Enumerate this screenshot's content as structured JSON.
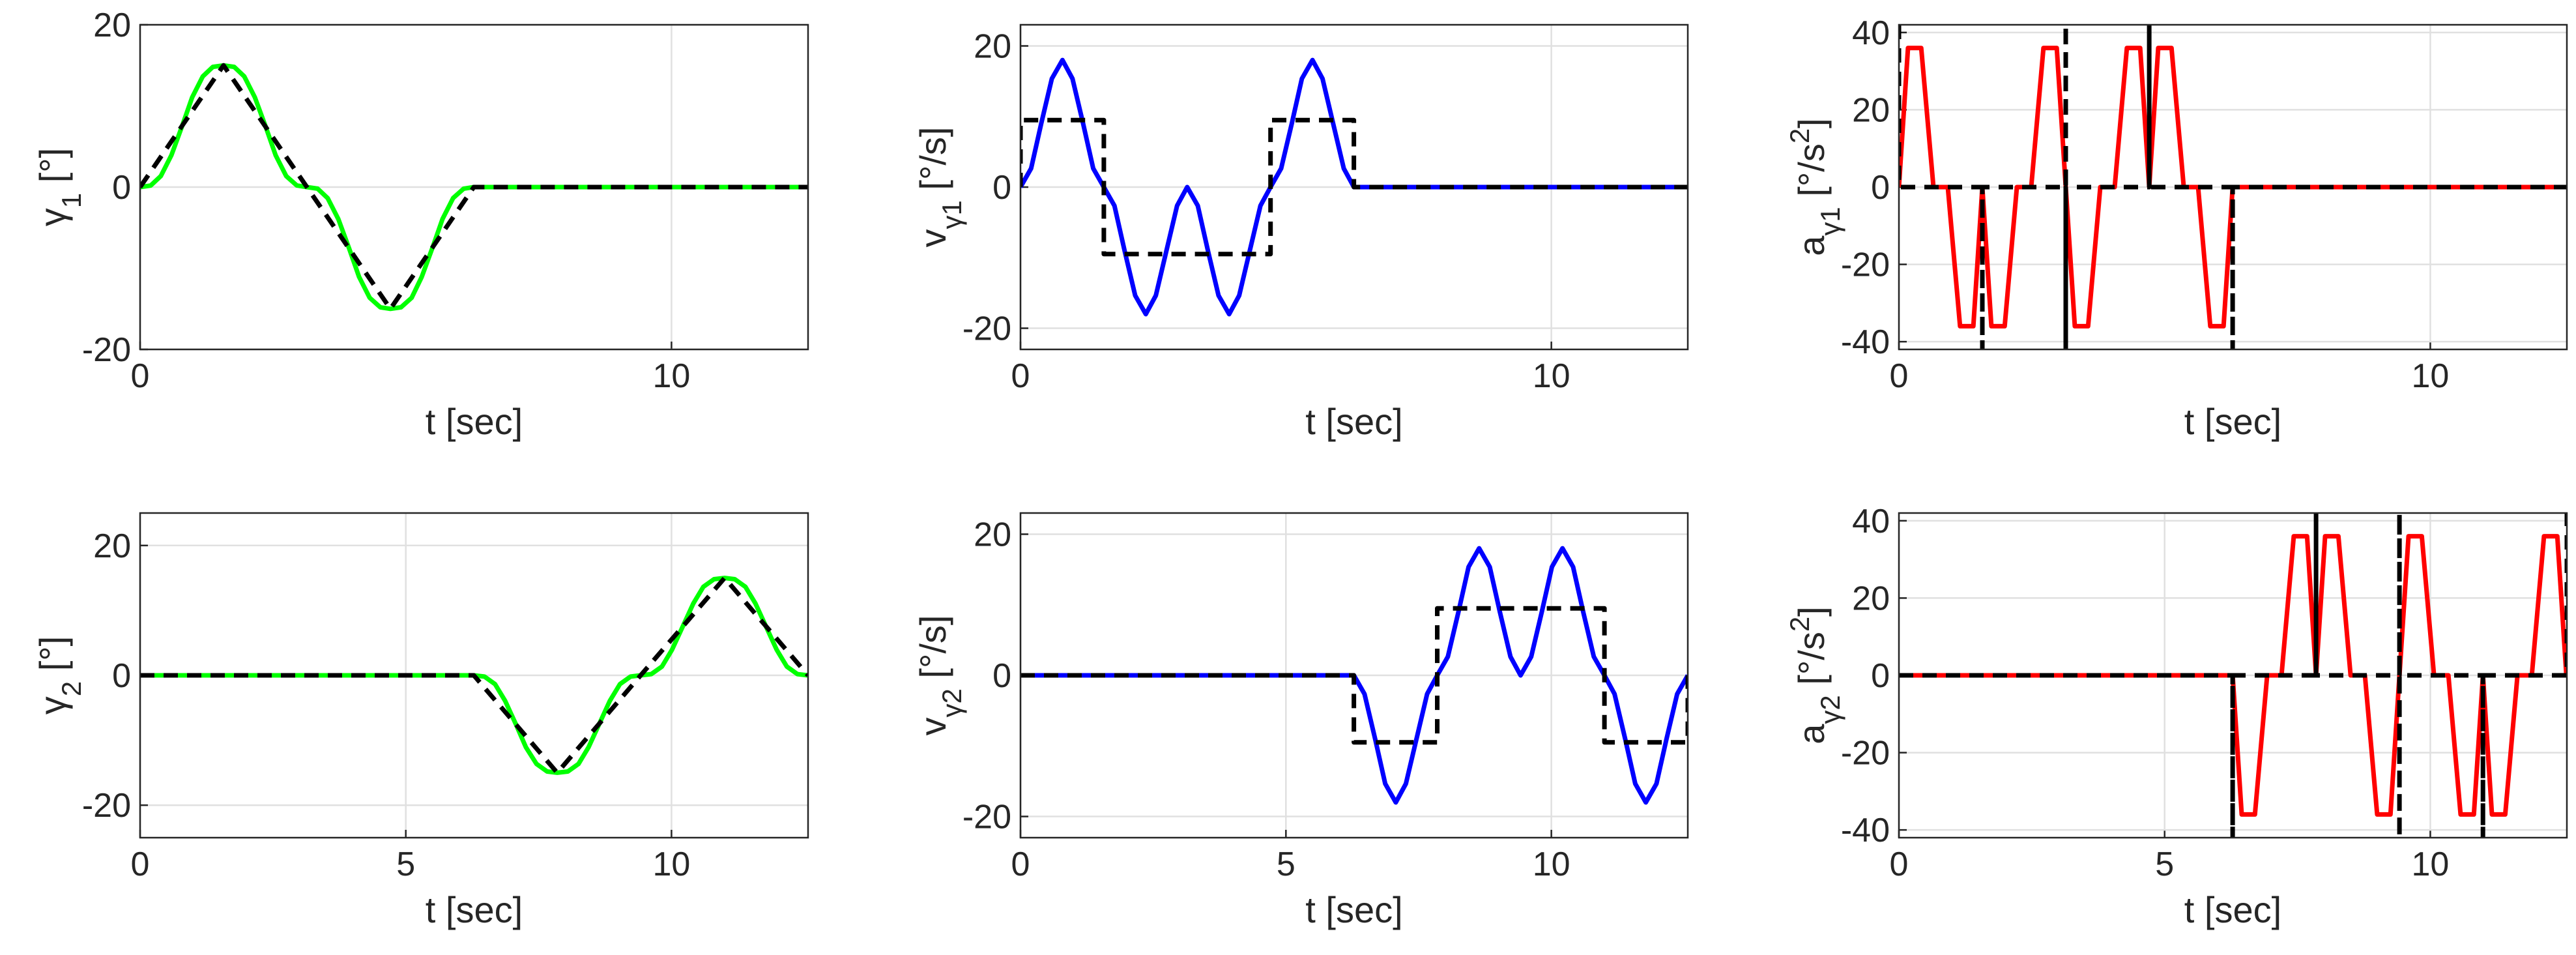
{
  "chart_data": [
    {
      "type": "line",
      "xlabel": "t [sec]",
      "ylabel": [
        {
          "text": "γ"
        },
        {
          "text": "1",
          "shift": "sub"
        },
        {
          "text": " [°]"
        }
      ],
      "xlim": [
        0,
        12.57
      ],
      "ylim": [
        -20,
        20
      ],
      "xticks": [
        0,
        10
      ],
      "yticks": [
        -20,
        0,
        20
      ],
      "grid": true,
      "series": [
        {
          "color": "#00ff00",
          "style": "solid",
          "x": [
            0,
            0.2,
            0.39,
            0.59,
            0.79,
            0.98,
            1.18,
            1.37,
            1.57,
            1.77,
            1.96,
            2.16,
            2.36,
            2.55,
            2.75,
            2.95,
            3.14,
            3.34,
            3.53,
            3.73,
            3.93,
            4.12,
            4.32,
            4.52,
            4.71,
            4.91,
            5.11,
            5.3,
            5.5,
            5.69,
            5.89,
            6.09,
            6.28,
            12.57
          ],
          "values": [
            0,
            0.19,
            1.36,
            3.94,
            7.5,
            11.06,
            13.64,
            14.81,
            15,
            14.81,
            13.64,
            11.06,
            7.5,
            3.94,
            1.36,
            0.19,
            0,
            -0.19,
            -1.36,
            -3.94,
            -7.5,
            -11.06,
            -13.64,
            -14.81,
            -15,
            -14.81,
            -13.64,
            -11.06,
            -7.5,
            -3.94,
            -1.36,
            -0.19,
            0,
            0
          ]
        },
        {
          "color": "#000000",
          "style": "dashed",
          "x": [
            0,
            1.57,
            3.14,
            4.71,
            6.28,
            12.57
          ],
          "values": [
            0,
            15,
            0,
            -15,
            0,
            0
          ]
        }
      ]
    },
    {
      "type": "line",
      "xlabel": "t [sec]",
      "ylabel": [
        {
          "text": "v"
        },
        {
          "text": "γ1",
          "shift": "sub"
        },
        {
          "text": " [°/s]"
        }
      ],
      "xlim": [
        0,
        12.57
      ],
      "ylim": [
        -23,
        23
      ],
      "xticks": [
        0,
        10
      ],
      "yticks": [
        -20,
        0,
        20
      ],
      "grid": true,
      "series": [
        {
          "color": "#0000ff",
          "style": "solid",
          "x": [
            0,
            0.2,
            0.39,
            0.59,
            0.79,
            0.98,
            1.18,
            1.37,
            1.57,
            1.77,
            1.96,
            2.16,
            2.36,
            2.55,
            2.75,
            2.95,
            3.14,
            3.34,
            3.53,
            3.73,
            3.93,
            4.12,
            4.32,
            4.52,
            4.71,
            4.91,
            5.11,
            5.3,
            5.5,
            5.69,
            5.89,
            6.09,
            6.28,
            12.57
          ],
          "values": [
            0,
            2.64,
            9,
            15.36,
            18,
            15.36,
            9,
            2.64,
            0,
            -2.64,
            -9,
            -15.36,
            -18,
            -15.36,
            -9,
            -2.64,
            0,
            -2.64,
            -9,
            -15.36,
            -18,
            -15.36,
            -9,
            -2.64,
            0,
            2.64,
            9,
            15.36,
            18,
            15.36,
            9,
            2.64,
            0,
            0
          ]
        },
        {
          "color": "#000000",
          "style": "dashed",
          "x": [
            0,
            0,
            1.57,
            1.57,
            4.71,
            4.71,
            6.28,
            6.28,
            12.57
          ],
          "values": [
            0,
            9.5,
            9.5,
            -9.5,
            -9.5,
            9.5,
            9.5,
            0,
            0
          ]
        }
      ]
    },
    {
      "type": "line",
      "xlabel": "t [sec]",
      "ylabel": [
        {
          "text": "a"
        },
        {
          "text": "γ1",
          "shift": "sub"
        },
        {
          "text": " [°/s"
        },
        {
          "text": "2",
          "shift": "super"
        },
        {
          "text": "]"
        }
      ],
      "xlim": [
        0,
        12.57
      ],
      "ylim": [
        -42,
        42
      ],
      "xticks": [
        0,
        10
      ],
      "yticks": [
        -40,
        -20,
        0,
        20,
        40
      ],
      "grid": true,
      "series": [
        {
          "color": "#ff0000",
          "style": "solid",
          "x": [
            0,
            0.17,
            0.42,
            0.65,
            0.92,
            1.15,
            1.4,
            1.57,
            1.74,
            1.99,
            2.22,
            2.49,
            2.72,
            2.97,
            3.14,
            3.31,
            3.56,
            3.79,
            4.06,
            4.29,
            4.54,
            4.71,
            4.88,
            5.13,
            5.36,
            5.63,
            5.86,
            6.11,
            6.28,
            12.57
          ],
          "values": [
            0,
            36,
            36,
            0,
            0,
            -36,
            -36,
            0,
            -36,
            -36,
            0,
            0,
            36,
            36,
            0,
            -36,
            -36,
            0,
            0,
            36,
            36,
            0,
            36,
            36,
            0,
            0,
            -36,
            -36,
            0,
            0
          ]
        },
        {
          "color": "#000000",
          "style": "dashed",
          "x": [
            0,
            0,
            1.57,
            1.57,
            1.57,
            3.14,
            3.14,
            3.14,
            3.14,
            4.71,
            4.71,
            4.71,
            6.28,
            6.28,
            6.28,
            12.57
          ],
          "values": [
            42,
            0,
            0,
            -42,
            0,
            0,
            42,
            -42,
            0,
            0,
            42,
            0,
            0,
            -42,
            0,
            0
          ]
        }
      ]
    },
    {
      "type": "line",
      "xlabel": "t [sec]",
      "ylabel": [
        {
          "text": "γ"
        },
        {
          "text": "2",
          "shift": "sub"
        },
        {
          "text": " [°]"
        }
      ],
      "xlim": [
        0,
        12.57
      ],
      "ylim": [
        -25,
        25
      ],
      "xticks": [
        0,
        5,
        10
      ],
      "yticks": [
        -20,
        0,
        20
      ],
      "grid": true,
      "series": [
        {
          "color": "#00ff00",
          "style": "solid",
          "x": [
            0,
            6.28,
            6.48,
            6.68,
            6.87,
            7.07,
            7.26,
            7.46,
            7.66,
            7.85,
            8.05,
            8.25,
            8.44,
            8.64,
            8.84,
            9.03,
            9.23,
            9.42,
            9.62,
            9.82,
            10.01,
            10.21,
            10.41,
            10.6,
            10.8,
            11.0,
            11.19,
            11.39,
            11.58,
            11.78,
            11.98,
            12.17,
            12.37,
            12.57
          ],
          "values": [
            0,
            0,
            -0.19,
            -1.36,
            -3.94,
            -7.5,
            -11.06,
            -13.64,
            -14.81,
            -15,
            -14.81,
            -13.64,
            -11.06,
            -7.5,
            -3.94,
            -1.36,
            -0.19,
            0,
            0.19,
            1.36,
            3.94,
            7.5,
            11.06,
            13.64,
            14.81,
            15,
            14.81,
            13.64,
            11.06,
            7.5,
            3.94,
            1.36,
            0.19,
            0
          ]
        },
        {
          "color": "#000000",
          "style": "dashed",
          "x": [
            0,
            6.28,
            7.85,
            9.42,
            11.0,
            12.57
          ],
          "values": [
            0,
            0,
            -15,
            0,
            15,
            0
          ]
        }
      ]
    },
    {
      "type": "line",
      "xlabel": "t [sec]",
      "ylabel": [
        {
          "text": "v"
        },
        {
          "text": "γ2",
          "shift": "sub"
        },
        {
          "text": " [°/s]"
        }
      ],
      "xlim": [
        0,
        12.57
      ],
      "ylim": [
        -23,
        23
      ],
      "xticks": [
        0,
        5,
        10
      ],
      "yticks": [
        -20,
        0,
        20
      ],
      "grid": true,
      "series": [
        {
          "color": "#0000ff",
          "style": "solid",
          "x": [
            0,
            6.28,
            6.48,
            6.68,
            6.87,
            7.07,
            7.26,
            7.46,
            7.66,
            7.85,
            8.05,
            8.25,
            8.44,
            8.64,
            8.84,
            9.03,
            9.23,
            9.42,
            9.62,
            9.82,
            10.01,
            10.21,
            10.41,
            10.6,
            10.8,
            11.0,
            11.19,
            11.39,
            11.58,
            11.78,
            11.98,
            12.17,
            12.37,
            12.57
          ],
          "values": [
            0,
            0,
            -2.64,
            -9,
            -15.36,
            -18,
            -15.36,
            -9,
            -2.64,
            0,
            2.64,
            9,
            15.36,
            18,
            15.36,
            9,
            2.64,
            0,
            2.64,
            9,
            15.36,
            18,
            15.36,
            9,
            2.64,
            0,
            -2.64,
            -9,
            -15.36,
            -18,
            -15.36,
            -9,
            -2.64,
            0
          ]
        },
        {
          "color": "#000000",
          "style": "dashed",
          "x": [
            0,
            6.28,
            6.28,
            7.85,
            7.85,
            11.0,
            11.0,
            12.57,
            12.57
          ],
          "values": [
            0,
            0,
            -9.5,
            -9.5,
            9.5,
            9.5,
            -9.5,
            -9.5,
            0
          ]
        }
      ]
    },
    {
      "type": "line",
      "xlabel": "t [sec]",
      "ylabel": [
        {
          "text": "a"
        },
        {
          "text": "γ2",
          "shift": "sub"
        },
        {
          "text": " [°/s"
        },
        {
          "text": "2",
          "shift": "super"
        },
        {
          "text": "]"
        }
      ],
      "xlim": [
        0,
        12.57
      ],
      "ylim": [
        -42,
        42
      ],
      "xticks": [
        0,
        5,
        10
      ],
      "yticks": [
        -40,
        -20,
        0,
        20,
        40
      ],
      "grid": true,
      "series": [
        {
          "color": "#ff0000",
          "style": "solid",
          "x": [
            0,
            6.28,
            6.45,
            6.7,
            6.93,
            7.2,
            7.43,
            7.68,
            7.85,
            8.02,
            8.27,
            8.5,
            8.77,
            9.0,
            9.25,
            9.42,
            9.59,
            9.84,
            10.07,
            10.34,
            10.57,
            10.82,
            10.99,
            11.16,
            11.41,
            11.64,
            11.91,
            12.14,
            12.39,
            12.56
          ],
          "values": [
            0,
            0,
            -36,
            -36,
            0,
            0,
            36,
            36,
            0,
            36,
            36,
            0,
            0,
            -36,
            -36,
            0,
            36,
            36,
            0,
            0,
            -36,
            -36,
            0,
            -36,
            -36,
            0,
            0,
            36,
            36,
            0
          ]
        },
        {
          "color": "#000000",
          "style": "dashed",
          "x": [
            0,
            6.28,
            6.28,
            6.28,
            7.85,
            7.85,
            7.85,
            9.42,
            9.42,
            9.42,
            9.42,
            10.99,
            10.99,
            10.99,
            12.57,
            12.57
          ],
          "values": [
            0,
            0,
            -42,
            0,
            0,
            42,
            0,
            0,
            42,
            -42,
            0,
            0,
            -42,
            0,
            0,
            42
          ]
        }
      ]
    }
  ]
}
